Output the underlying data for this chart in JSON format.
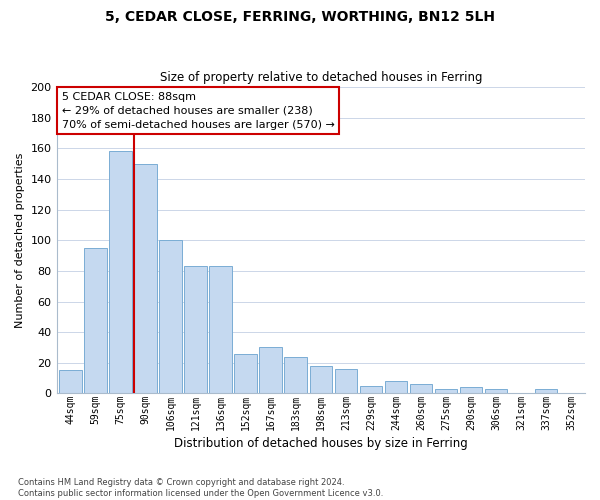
{
  "title": "5, CEDAR CLOSE, FERRING, WORTHING, BN12 5LH",
  "subtitle": "Size of property relative to detached houses in Ferring",
  "xlabel": "Distribution of detached houses by size in Ferring",
  "ylabel": "Number of detached properties",
  "categories": [
    "44sqm",
    "59sqm",
    "75sqm",
    "90sqm",
    "106sqm",
    "121sqm",
    "136sqm",
    "152sqm",
    "167sqm",
    "183sqm",
    "198sqm",
    "213sqm",
    "229sqm",
    "244sqm",
    "260sqm",
    "275sqm",
    "290sqm",
    "306sqm",
    "321sqm",
    "337sqm",
    "352sqm"
  ],
  "values": [
    15,
    95,
    158,
    150,
    100,
    83,
    83,
    26,
    30,
    24,
    18,
    16,
    5,
    8,
    6,
    3,
    4,
    3,
    0,
    3,
    0
  ],
  "bar_color": "#c5d9f0",
  "bar_edge_color": "#7aadd4",
  "vline_color": "#cc0000",
  "vline_at_bar": 3,
  "ylim": [
    0,
    200
  ],
  "yticks": [
    0,
    20,
    40,
    60,
    80,
    100,
    120,
    140,
    160,
    180,
    200
  ],
  "annotation_box_text_line1": "5 CEDAR CLOSE: 88sqm",
  "annotation_box_text_line2": "← 29% of detached houses are smaller (238)",
  "annotation_box_text_line3": "70% of semi-detached houses are larger (570) →",
  "annotation_box_color": "#ffffff",
  "annotation_box_edge_color": "#cc0000",
  "footnote_line1": "Contains HM Land Registry data © Crown copyright and database right 2024.",
  "footnote_line2": "Contains public sector information licensed under the Open Government Licence v3.0.",
  "background_color": "#ffffff",
  "grid_color": "#ccd6e8"
}
